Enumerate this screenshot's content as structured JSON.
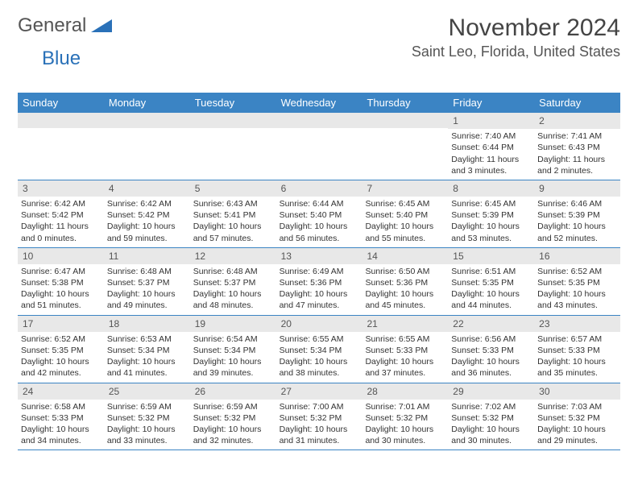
{
  "logo": {
    "word1": "General",
    "word2": "Blue"
  },
  "title": "November 2024",
  "location": "Saint Leo, Florida, United States",
  "colors": {
    "header_bg": "#3b84c4",
    "header_text": "#ffffff",
    "daynum_bg": "#e8e8e8",
    "border": "#3b84c4",
    "logo_gray": "#555555",
    "logo_blue": "#2a71b8"
  },
  "weekdays": [
    "Sunday",
    "Monday",
    "Tuesday",
    "Wednesday",
    "Thursday",
    "Friday",
    "Saturday"
  ],
  "weeks": [
    [
      {
        "empty": true
      },
      {
        "empty": true
      },
      {
        "empty": true
      },
      {
        "empty": true
      },
      {
        "empty": true
      },
      {
        "n": "1",
        "sr": "Sunrise: 7:40 AM",
        "ss": "Sunset: 6:44 PM",
        "dl": "Daylight: 11 hours and 3 minutes."
      },
      {
        "n": "2",
        "sr": "Sunrise: 7:41 AM",
        "ss": "Sunset: 6:43 PM",
        "dl": "Daylight: 11 hours and 2 minutes."
      }
    ],
    [
      {
        "n": "3",
        "sr": "Sunrise: 6:42 AM",
        "ss": "Sunset: 5:42 PM",
        "dl": "Daylight: 11 hours and 0 minutes."
      },
      {
        "n": "4",
        "sr": "Sunrise: 6:42 AM",
        "ss": "Sunset: 5:42 PM",
        "dl": "Daylight: 10 hours and 59 minutes."
      },
      {
        "n": "5",
        "sr": "Sunrise: 6:43 AM",
        "ss": "Sunset: 5:41 PM",
        "dl": "Daylight: 10 hours and 57 minutes."
      },
      {
        "n": "6",
        "sr": "Sunrise: 6:44 AM",
        "ss": "Sunset: 5:40 PM",
        "dl": "Daylight: 10 hours and 56 minutes."
      },
      {
        "n": "7",
        "sr": "Sunrise: 6:45 AM",
        "ss": "Sunset: 5:40 PM",
        "dl": "Daylight: 10 hours and 55 minutes."
      },
      {
        "n": "8",
        "sr": "Sunrise: 6:45 AM",
        "ss": "Sunset: 5:39 PM",
        "dl": "Daylight: 10 hours and 53 minutes."
      },
      {
        "n": "9",
        "sr": "Sunrise: 6:46 AM",
        "ss": "Sunset: 5:39 PM",
        "dl": "Daylight: 10 hours and 52 minutes."
      }
    ],
    [
      {
        "n": "10",
        "sr": "Sunrise: 6:47 AM",
        "ss": "Sunset: 5:38 PM",
        "dl": "Daylight: 10 hours and 51 minutes."
      },
      {
        "n": "11",
        "sr": "Sunrise: 6:48 AM",
        "ss": "Sunset: 5:37 PM",
        "dl": "Daylight: 10 hours and 49 minutes."
      },
      {
        "n": "12",
        "sr": "Sunrise: 6:48 AM",
        "ss": "Sunset: 5:37 PM",
        "dl": "Daylight: 10 hours and 48 minutes."
      },
      {
        "n": "13",
        "sr": "Sunrise: 6:49 AM",
        "ss": "Sunset: 5:36 PM",
        "dl": "Daylight: 10 hours and 47 minutes."
      },
      {
        "n": "14",
        "sr": "Sunrise: 6:50 AM",
        "ss": "Sunset: 5:36 PM",
        "dl": "Daylight: 10 hours and 45 minutes."
      },
      {
        "n": "15",
        "sr": "Sunrise: 6:51 AM",
        "ss": "Sunset: 5:35 PM",
        "dl": "Daylight: 10 hours and 44 minutes."
      },
      {
        "n": "16",
        "sr": "Sunrise: 6:52 AM",
        "ss": "Sunset: 5:35 PM",
        "dl": "Daylight: 10 hours and 43 minutes."
      }
    ],
    [
      {
        "n": "17",
        "sr": "Sunrise: 6:52 AM",
        "ss": "Sunset: 5:35 PM",
        "dl": "Daylight: 10 hours and 42 minutes."
      },
      {
        "n": "18",
        "sr": "Sunrise: 6:53 AM",
        "ss": "Sunset: 5:34 PM",
        "dl": "Daylight: 10 hours and 41 minutes."
      },
      {
        "n": "19",
        "sr": "Sunrise: 6:54 AM",
        "ss": "Sunset: 5:34 PM",
        "dl": "Daylight: 10 hours and 39 minutes."
      },
      {
        "n": "20",
        "sr": "Sunrise: 6:55 AM",
        "ss": "Sunset: 5:34 PM",
        "dl": "Daylight: 10 hours and 38 minutes."
      },
      {
        "n": "21",
        "sr": "Sunrise: 6:55 AM",
        "ss": "Sunset: 5:33 PM",
        "dl": "Daylight: 10 hours and 37 minutes."
      },
      {
        "n": "22",
        "sr": "Sunrise: 6:56 AM",
        "ss": "Sunset: 5:33 PM",
        "dl": "Daylight: 10 hours and 36 minutes."
      },
      {
        "n": "23",
        "sr": "Sunrise: 6:57 AM",
        "ss": "Sunset: 5:33 PM",
        "dl": "Daylight: 10 hours and 35 minutes."
      }
    ],
    [
      {
        "n": "24",
        "sr": "Sunrise: 6:58 AM",
        "ss": "Sunset: 5:33 PM",
        "dl": "Daylight: 10 hours and 34 minutes."
      },
      {
        "n": "25",
        "sr": "Sunrise: 6:59 AM",
        "ss": "Sunset: 5:32 PM",
        "dl": "Daylight: 10 hours and 33 minutes."
      },
      {
        "n": "26",
        "sr": "Sunrise: 6:59 AM",
        "ss": "Sunset: 5:32 PM",
        "dl": "Daylight: 10 hours and 32 minutes."
      },
      {
        "n": "27",
        "sr": "Sunrise: 7:00 AM",
        "ss": "Sunset: 5:32 PM",
        "dl": "Daylight: 10 hours and 31 minutes."
      },
      {
        "n": "28",
        "sr": "Sunrise: 7:01 AM",
        "ss": "Sunset: 5:32 PM",
        "dl": "Daylight: 10 hours and 30 minutes."
      },
      {
        "n": "29",
        "sr": "Sunrise: 7:02 AM",
        "ss": "Sunset: 5:32 PM",
        "dl": "Daylight: 10 hours and 30 minutes."
      },
      {
        "n": "30",
        "sr": "Sunrise: 7:03 AM",
        "ss": "Sunset: 5:32 PM",
        "dl": "Daylight: 10 hours and 29 minutes."
      }
    ]
  ]
}
